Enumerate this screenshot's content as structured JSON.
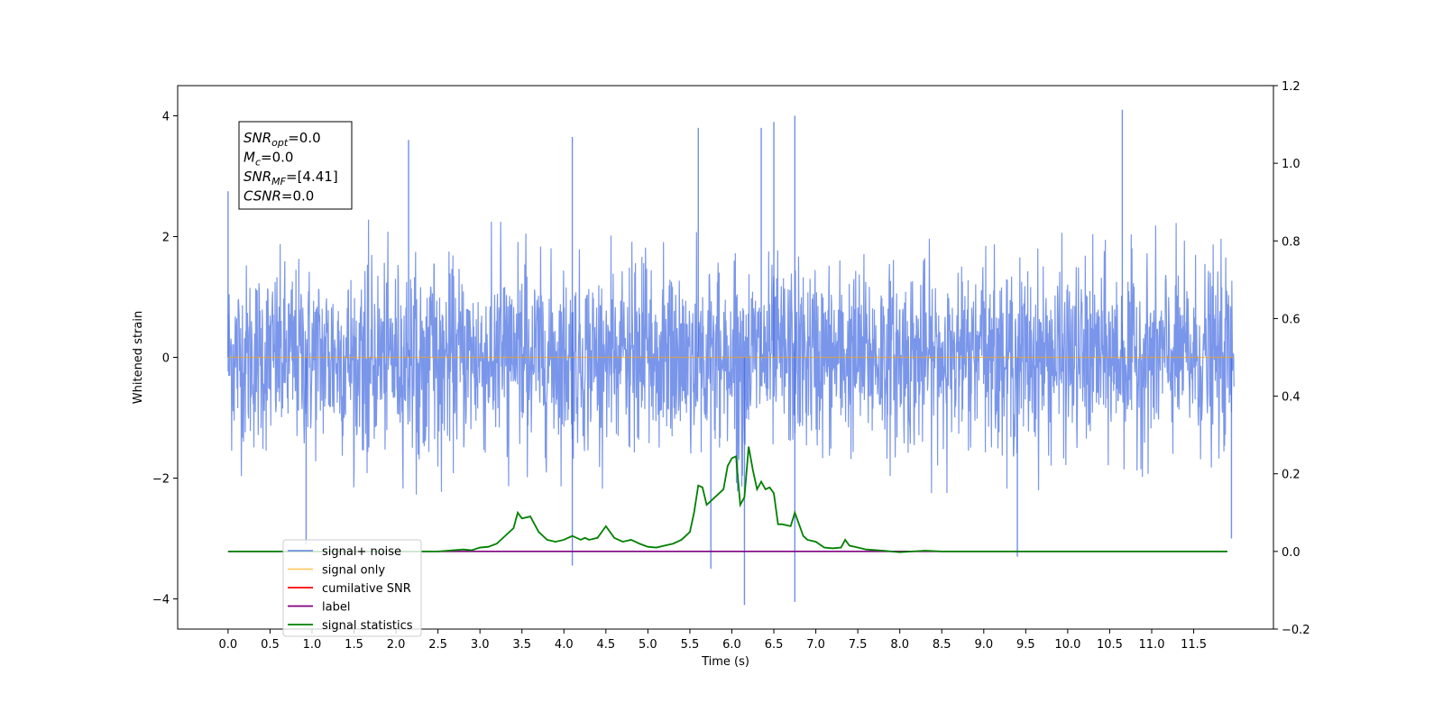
{
  "chart_data": {
    "type": "line",
    "xlabel": "Time (s)",
    "ylabel_left": "Whitened strain",
    "ylabel_right": "",
    "xlim": [
      -0.6,
      12.45
    ],
    "ylim_left": [
      -4.5,
      4.5
    ],
    "ylim_right": [
      -0.2,
      1.2
    ],
    "x_ticks": [
      0.0,
      0.5,
      1.0,
      1.5,
      2.0,
      2.5,
      3.0,
      3.5,
      4.0,
      4.5,
      5.0,
      5.5,
      6.0,
      6.5,
      7.0,
      7.5,
      8.0,
      8.5,
      9.0,
      9.5,
      10.0,
      10.5,
      11.0,
      11.5
    ],
    "x_tick_labels": [
      "0.0",
      "0.5",
      "1.0",
      "1.5",
      "2.0",
      "2.5",
      "3.0",
      "3.5",
      "4.0",
      "4.5",
      "5.0",
      "5.5",
      "6.0",
      "6.5",
      "7.0",
      "7.5",
      "8.0",
      "8.5",
      "9.0",
      "9.5",
      "10.0",
      "10.5",
      "11.0",
      "11.5"
    ],
    "y_ticks_left": [
      -4,
      -2,
      0,
      2,
      4
    ],
    "y_tick_labels_left": [
      "−4",
      "−2",
      "0",
      "2",
      "4"
    ],
    "y_ticks_right": [
      -0.2,
      0.0,
      0.2,
      0.4,
      0.6,
      0.8,
      1.0,
      1.2
    ],
    "y_tick_labels_right": [
      "−0.2",
      "0.0",
      "0.2",
      "0.4",
      "0.6",
      "0.8",
      "1.0",
      "1.2"
    ],
    "grid": false,
    "legend_position": "lower-left",
    "annotation": {
      "lines": [
        {
          "base": "SNR",
          "sub": "opt",
          "value": "=0.0"
        },
        {
          "base": "M",
          "sub": "c",
          "value": "=0.0"
        },
        {
          "base": "SNR",
          "sub": "MF",
          "value": "=[4.41]"
        },
        {
          "base": "CSNR",
          "sub": "",
          "value": "=0.0"
        }
      ]
    },
    "series": [
      {
        "name": "signal+ noise",
        "axis": "left",
        "color": "#4169E1",
        "style": "dense-noise",
        "x_range": [
          0.0,
          11.98
        ],
        "typical_abs_max": 2.3,
        "peaks": [
          [
            0.0,
            2.75
          ],
          [
            0.93,
            -3.1
          ],
          [
            2.15,
            3.6
          ],
          [
            4.1,
            3.65
          ],
          [
            4.1,
            -3.45
          ],
          [
            5.6,
            3.8
          ],
          [
            5.75,
            -3.5
          ],
          [
            6.15,
            -4.1
          ],
          [
            6.35,
            3.8
          ],
          [
            6.5,
            3.9
          ],
          [
            6.75,
            4.0
          ],
          [
            6.75,
            -4.05
          ],
          [
            9.4,
            -3.3
          ],
          [
            10.65,
            4.1
          ],
          [
            11.95,
            -3.0
          ]
        ]
      },
      {
        "name": "signal only",
        "axis": "left",
        "color": "#FFA500",
        "x": [
          0.0,
          11.98
        ],
        "y": [
          0.0,
          0.0
        ]
      },
      {
        "name": "cumilative SNR",
        "axis": "left",
        "color": "#FF0000",
        "x": [],
        "y": []
      },
      {
        "name": "label",
        "axis": "right",
        "color": "#800080",
        "x": [
          0.0,
          11.9
        ],
        "y": [
          0.0,
          0.0
        ]
      },
      {
        "name": "signal statistics",
        "axis": "right",
        "color": "#008000",
        "x": [
          0.0,
          2.5,
          2.8,
          2.9,
          3.0,
          3.1,
          3.2,
          3.3,
          3.4,
          3.45,
          3.5,
          3.6,
          3.7,
          3.8,
          3.9,
          4.0,
          4.1,
          4.2,
          4.25,
          4.3,
          4.4,
          4.5,
          4.6,
          4.7,
          4.8,
          4.9,
          5.0,
          5.1,
          5.2,
          5.3,
          5.4,
          5.5,
          5.55,
          5.6,
          5.65,
          5.7,
          5.8,
          5.9,
          5.95,
          6.0,
          6.05,
          6.1,
          6.15,
          6.2,
          6.25,
          6.3,
          6.35,
          6.4,
          6.45,
          6.5,
          6.55,
          6.6,
          6.7,
          6.75,
          6.8,
          6.85,
          6.9,
          7.0,
          7.1,
          7.2,
          7.3,
          7.35,
          7.4,
          7.5,
          7.6,
          7.8,
          8.0,
          8.3,
          8.5,
          11.9
        ],
        "y": [
          0.0,
          0.0,
          0.005,
          0.003,
          0.01,
          0.012,
          0.02,
          0.04,
          0.06,
          0.1,
          0.085,
          0.09,
          0.05,
          0.03,
          0.025,
          0.03,
          0.04,
          0.03,
          0.035,
          0.03,
          0.035,
          0.065,
          0.035,
          0.025,
          0.03,
          0.02,
          0.012,
          0.01,
          0.015,
          0.02,
          0.03,
          0.05,
          0.1,
          0.17,
          0.165,
          0.12,
          0.14,
          0.16,
          0.22,
          0.24,
          0.245,
          0.12,
          0.14,
          0.27,
          0.21,
          0.16,
          0.18,
          0.16,
          0.165,
          0.15,
          0.07,
          0.07,
          0.065,
          0.1,
          0.07,
          0.04,
          0.03,
          0.025,
          0.01,
          0.008,
          0.01,
          0.03,
          0.015,
          0.01,
          0.005,
          0.002,
          -0.002,
          0.002,
          0.0,
          0.0
        ]
      }
    ]
  }
}
